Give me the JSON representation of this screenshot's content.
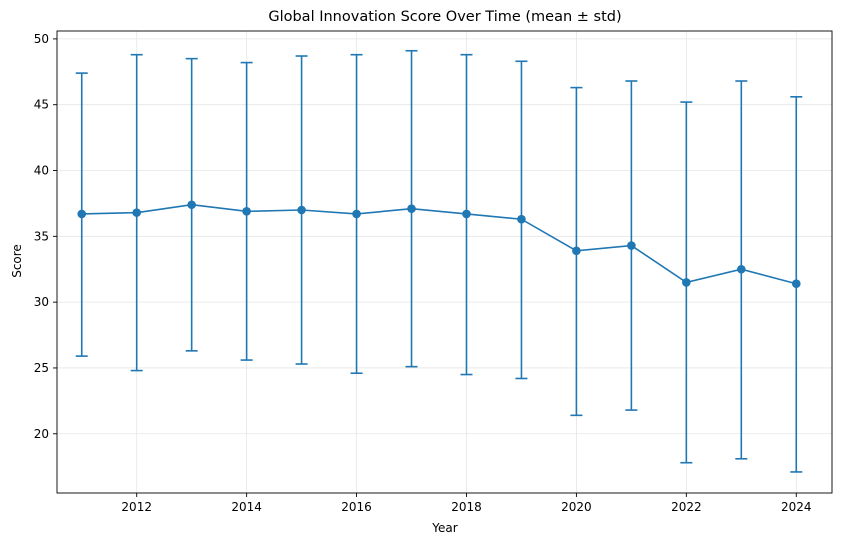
{
  "chart_data": {
    "type": "line",
    "title": "Global Innovation Score Over Time (mean ± std)",
    "xlabel": "Year",
    "ylabel": "Score",
    "xlim": [
      2010.55,
      2024.65
    ],
    "ylim": [
      15.5,
      50.6
    ],
    "xticks": [
      2012,
      2014,
      2016,
      2018,
      2020,
      2022,
      2024
    ],
    "yticks": [
      20,
      25,
      30,
      35,
      40,
      45,
      50
    ],
    "grid": true,
    "color": "#1f77b4",
    "series": [
      {
        "x": [
          2011,
          2012,
          2013,
          2014,
          2015,
          2016,
          2017,
          2018,
          2019,
          2020,
          2021,
          2022,
          2023,
          2024
        ],
        "mean": [
          36.7,
          36.8,
          37.4,
          36.9,
          37.0,
          36.7,
          37.1,
          36.7,
          36.3,
          33.9,
          34.3,
          31.5,
          32.5,
          31.4
        ],
        "lower": [
          25.9,
          24.8,
          26.3,
          25.6,
          25.3,
          24.6,
          25.1,
          24.5,
          24.2,
          21.4,
          21.8,
          17.8,
          18.1,
          17.1
        ],
        "upper": [
          47.4,
          48.8,
          48.5,
          48.2,
          48.7,
          48.8,
          49.1,
          48.8,
          48.3,
          46.3,
          46.8,
          45.2,
          46.8,
          45.6
        ]
      }
    ]
  }
}
